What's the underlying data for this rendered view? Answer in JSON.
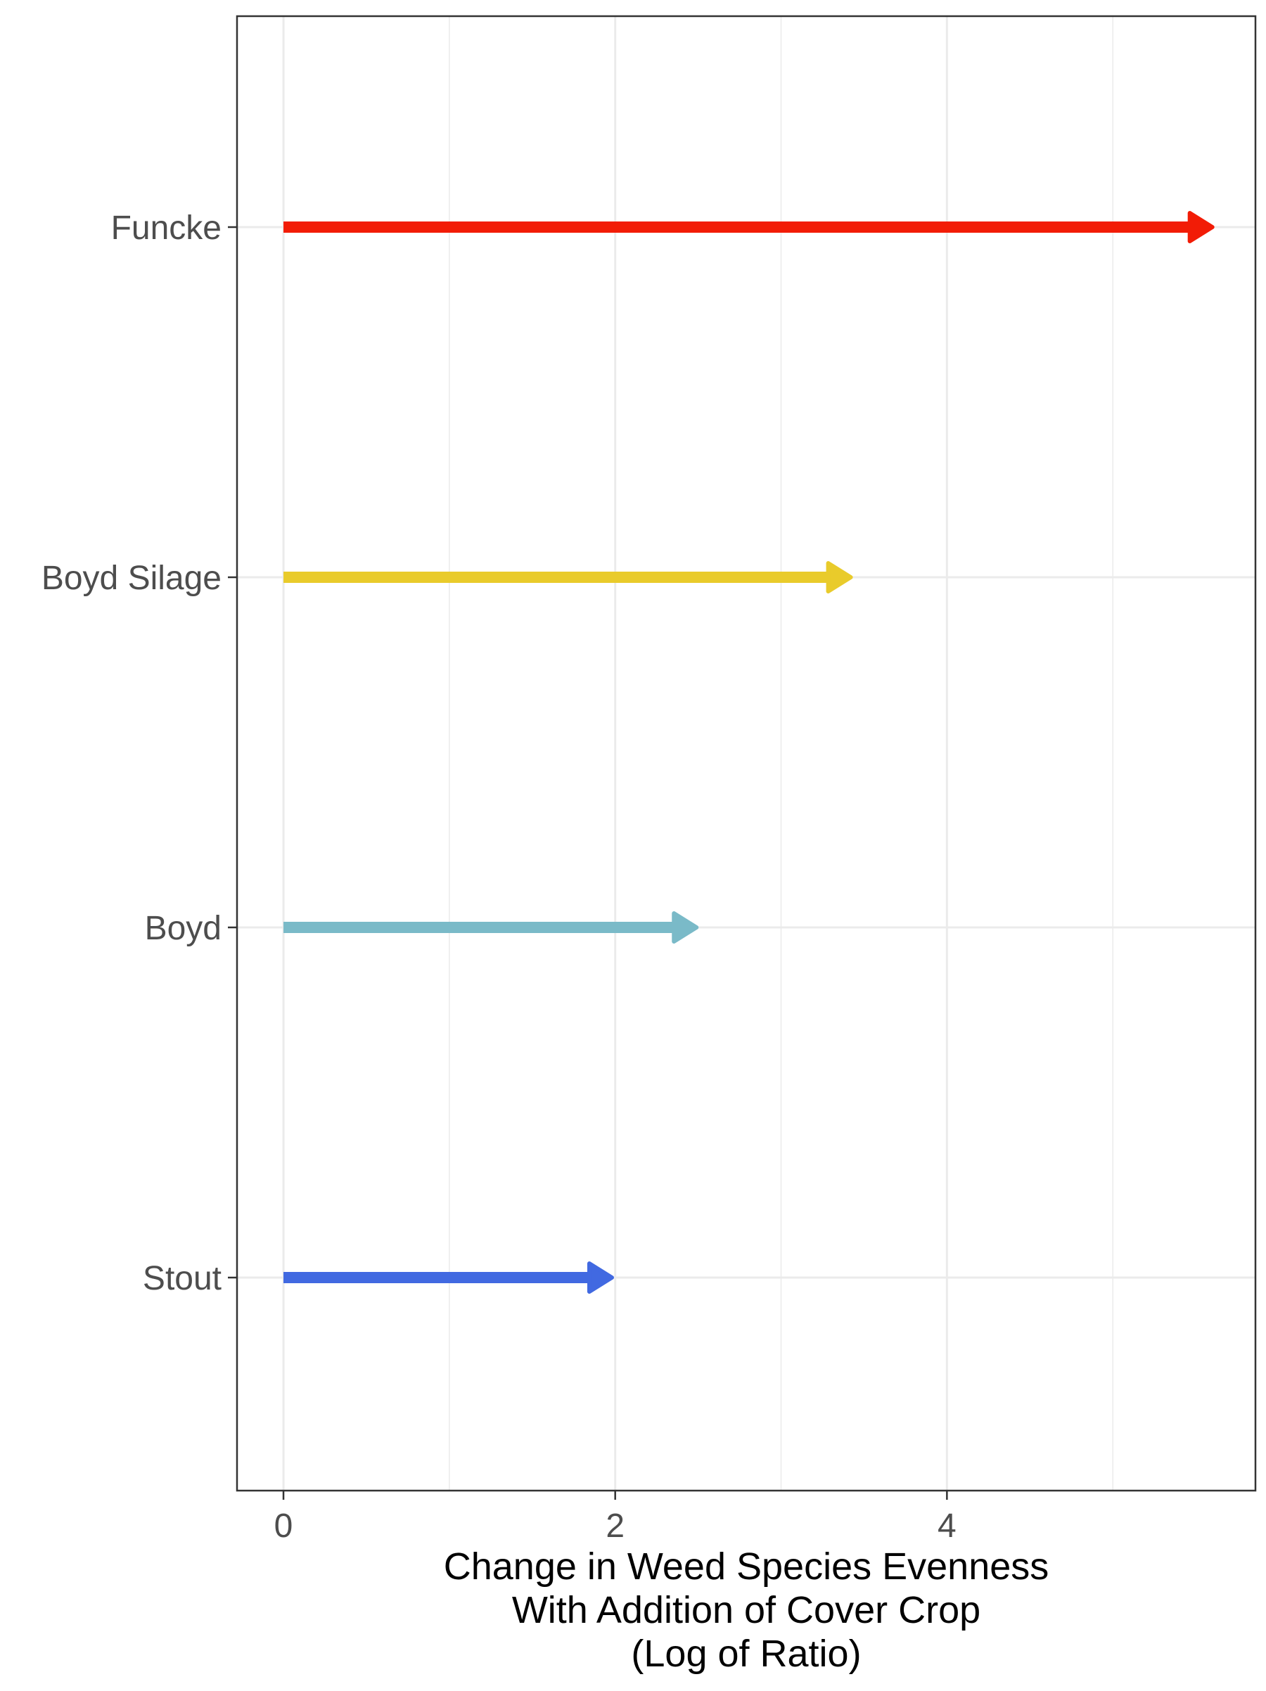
{
  "chart_data": {
    "type": "arrow",
    "orientation": "horizontal",
    "categories": [
      "Funcke",
      "Boyd Silage",
      "Boyd",
      "Stout"
    ],
    "series": [
      {
        "values": [
          5.6,
          3.42,
          2.49,
          1.98
        ],
        "start": 0,
        "colors": [
          "#f21c06",
          "#e9cb2b",
          "#7abac8",
          "#4169e1"
        ]
      }
    ],
    "xlabel": [
      "Change in Weed Species Evenness",
      "With Addition of Cover Crop",
      "(Log of Ratio)"
    ],
    "ylabel": "",
    "title": "",
    "xlim": [
      -0.28,
      5.86
    ],
    "xticks": [
      0,
      2,
      4
    ],
    "grid": true,
    "legend": "none",
    "theme": "bw"
  }
}
